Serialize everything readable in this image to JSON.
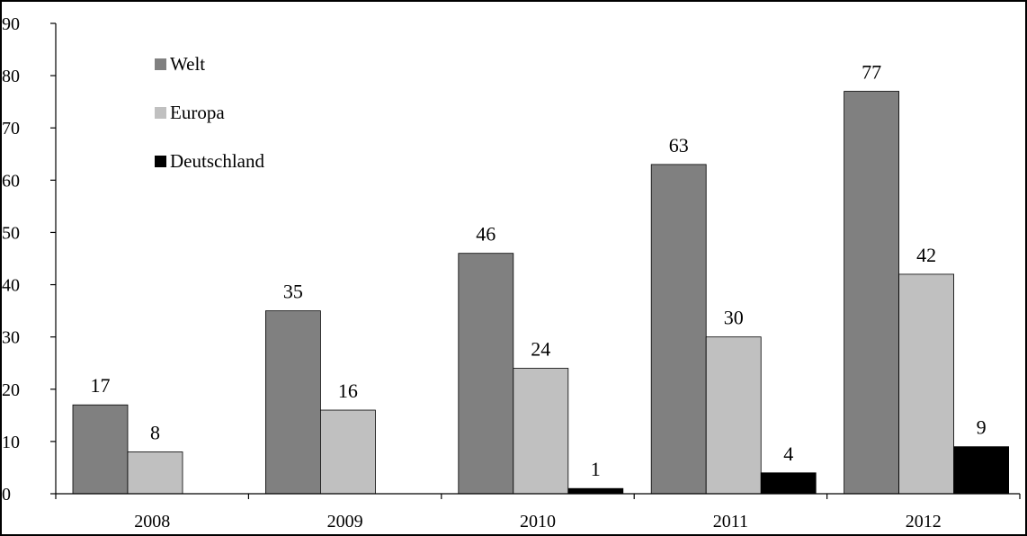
{
  "chart_data": {
    "type": "bar",
    "title": "",
    "xlabel": "",
    "ylabel": "",
    "categories": [
      "2008",
      "2009",
      "2010",
      "2011",
      "2012"
    ],
    "series": [
      {
        "name": "Welt",
        "color": "#808080",
        "values": [
          17,
          35,
          46,
          63,
          77
        ]
      },
      {
        "name": "Europa",
        "color": "#c0c0c0",
        "values": [
          8,
          16,
          24,
          30,
          42
        ]
      },
      {
        "name": "Deutschland",
        "color": "#000000",
        "values": [
          null,
          null,
          1,
          4,
          9
        ]
      }
    ],
    "ylim": [
      0,
      90
    ],
    "yticks": [
      "0",
      "10",
      "20",
      "30",
      "40",
      "50",
      "60",
      "70",
      "80",
      "90"
    ],
    "grid": false,
    "legend": "top-left",
    "data_labels": true
  }
}
